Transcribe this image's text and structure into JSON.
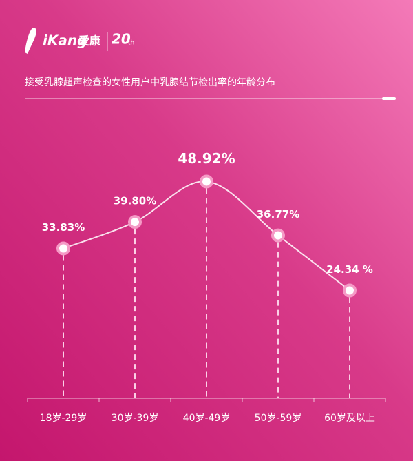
{
  "logo": {
    "brand": "iKang",
    "brand_cn": "爱康",
    "anniversary": "20",
    "anniversary_suffix": "th"
  },
  "chart_data": {
    "type": "line",
    "title": "接受乳腺超声检查的女性用户中乳腺结节检出率的年龄分布",
    "categories": [
      "18岁-29岁",
      "30岁-39岁",
      "40岁-49岁",
      "50岁-59岁",
      "60岁及以上"
    ],
    "values": [
      33.83,
      39.8,
      48.92,
      36.77,
      24.34
    ],
    "value_labels": [
      "33.83%",
      "39.80%",
      "48.92%",
      "36.77%",
      "24.34 %"
    ],
    "color": "#ffffff"
  }
}
